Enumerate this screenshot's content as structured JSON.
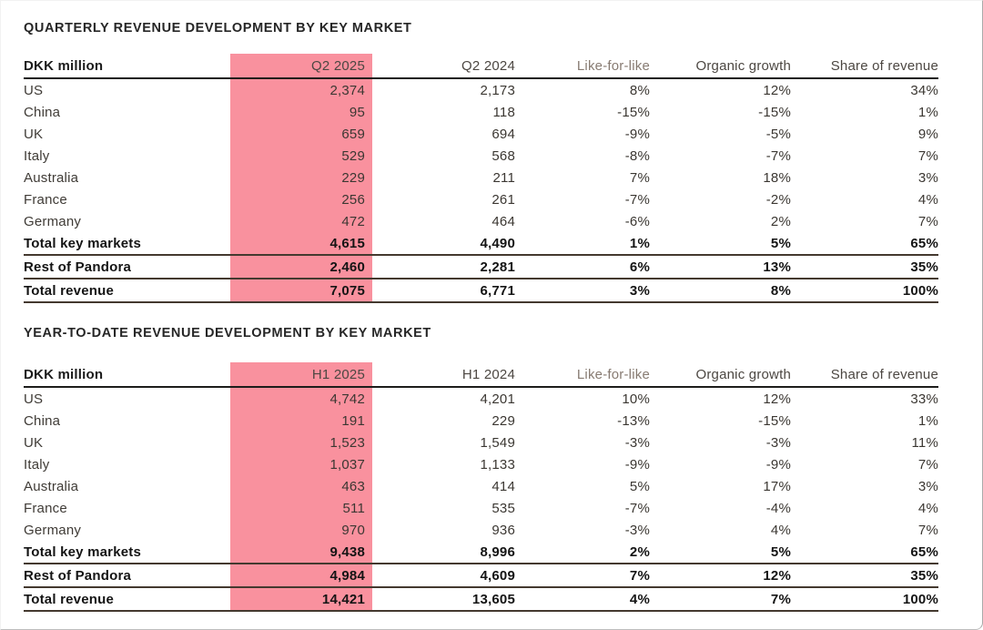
{
  "tables": [
    {
      "title": "QUARTERLY REVENUE DEVELOPMENT BY KEY MARKET",
      "columns": [
        "DKK million",
        "Q2 2025",
        "Q2 2024",
        "Like-for-like",
        "Organic growth",
        "Share of revenue"
      ],
      "highlight_color": "#f9919e",
      "rows": [
        {
          "label": "US",
          "values": [
            "2,374",
            "2,173",
            "8%",
            "12%",
            "34%"
          ]
        },
        {
          "label": "China",
          "values": [
            "95",
            "118",
            "-15%",
            "-15%",
            "1%"
          ]
        },
        {
          "label": "UK",
          "values": [
            "659",
            "694",
            "-9%",
            "-5%",
            "9%"
          ]
        },
        {
          "label": "Italy",
          "values": [
            "529",
            "568",
            "-8%",
            "-7%",
            "7%"
          ]
        },
        {
          "label": "Australia",
          "values": [
            "229",
            "211",
            "7%",
            "18%",
            "3%"
          ]
        },
        {
          "label": "France",
          "values": [
            "256",
            "261",
            "-7%",
            "-2%",
            "4%"
          ]
        },
        {
          "label": "Germany",
          "values": [
            "472",
            "464",
            "-6%",
            "2%",
            "7%"
          ]
        },
        {
          "label": "Total key markets",
          "values": [
            "4,615",
            "4,490",
            "1%",
            "5%",
            "65%"
          ]
        },
        {
          "label": "Rest of Pandora",
          "values": [
            "2,460",
            "2,281",
            "6%",
            "13%",
            "35%"
          ]
        },
        {
          "label": "Total revenue",
          "values": [
            "7,075",
            "6,771",
            "3%",
            "8%",
            "100%"
          ]
        }
      ]
    },
    {
      "title": "YEAR-TO-DATE REVENUE DEVELOPMENT BY KEY MARKET",
      "columns": [
        "DKK million",
        "H1 2025",
        "H1 2024",
        "Like-for-like",
        "Organic growth",
        "Share of revenue"
      ],
      "highlight_color": "#f9919e",
      "rows": [
        {
          "label": "US",
          "values": [
            "4,742",
            "4,201",
            "10%",
            "12%",
            "33%"
          ]
        },
        {
          "label": "China",
          "values": [
            "191",
            "229",
            "-13%",
            "-15%",
            "1%"
          ]
        },
        {
          "label": "UK",
          "values": [
            "1,523",
            "1,549",
            "-3%",
            "-3%",
            "11%"
          ]
        },
        {
          "label": "Italy",
          "values": [
            "1,037",
            "1,133",
            "-9%",
            "-9%",
            "7%"
          ]
        },
        {
          "label": "Australia",
          "values": [
            "463",
            "414",
            "5%",
            "17%",
            "3%"
          ]
        },
        {
          "label": "France",
          "values": [
            "511",
            "535",
            "-7%",
            "-4%",
            "4%"
          ]
        },
        {
          "label": "Germany",
          "values": [
            "970",
            "936",
            "-3%",
            "4%",
            "7%"
          ]
        },
        {
          "label": "Total key markets",
          "values": [
            "9,438",
            "8,996",
            "2%",
            "5%",
            "65%"
          ]
        },
        {
          "label": "Rest of Pandora",
          "values": [
            "4,984",
            "4,609",
            "7%",
            "12%",
            "35%"
          ]
        },
        {
          "label": "Total revenue",
          "values": [
            "14,421",
            "13,605",
            "4%",
            "7%",
            "100%"
          ]
        }
      ]
    }
  ]
}
